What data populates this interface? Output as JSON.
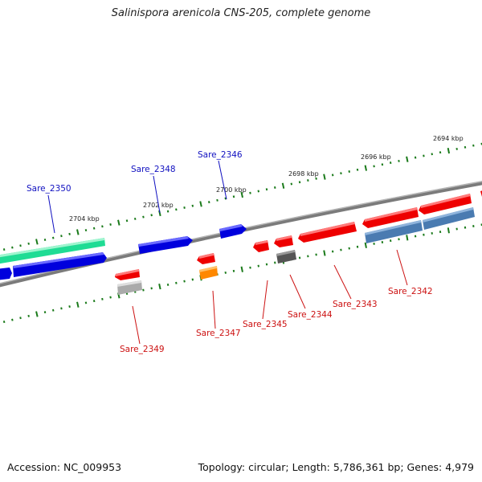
{
  "title": "Salinispora arenicola CNS-205, complete genome",
  "footer": {
    "accession": "Accession: NC_009953",
    "summary": "Topology: circular; Length: 5,786,361 bp; Genes: 4,979"
  },
  "scale_labels": [
    "2704 kbp",
    "2702 kbp",
    "2700 kbp",
    "2698 kbp",
    "2696 kbp",
    "2694 kbp"
  ],
  "gene_labels": [
    {
      "name": "Sare_2350",
      "strand": "forward"
    },
    {
      "name": "Sare_2348",
      "strand": "forward"
    },
    {
      "name": "Sare_2346",
      "strand": "forward"
    },
    {
      "name": "Sare_2349",
      "strand": "reverse"
    },
    {
      "name": "Sare_2347",
      "strand": "reverse"
    },
    {
      "name": "Sare_2345",
      "strand": "reverse"
    },
    {
      "name": "Sare_2344",
      "strand": "reverse"
    },
    {
      "name": "Sare_2343",
      "strand": "reverse"
    },
    {
      "name": "Sare_2342",
      "strand": "reverse"
    }
  ],
  "colors": {
    "forward_label": "#1010c0",
    "reverse_label": "#cc1111",
    "forward_gene": "#0000dd",
    "reverse_gene": "#ee0000",
    "green_track": "#22e29a",
    "steel_track": "#4f7fb3",
    "backbone": "#888888",
    "ticks": "#1a7a1a"
  }
}
